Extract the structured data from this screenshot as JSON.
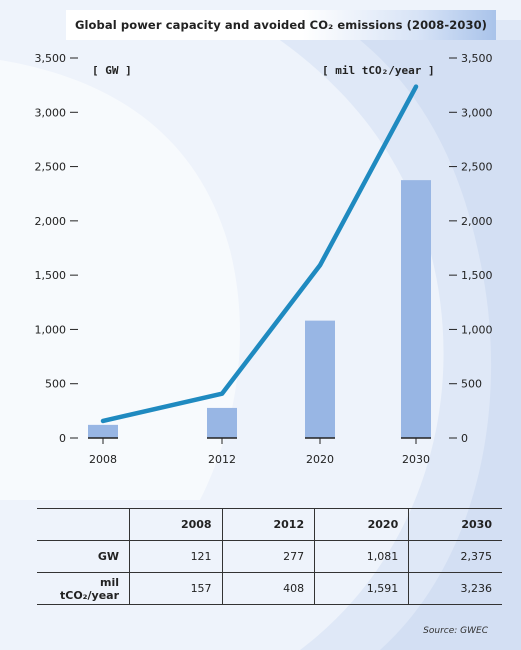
{
  "chart_data": {
    "type": "bar",
    "title": "Global power capacity and avoided CO₂ emissions (2008-2030)",
    "categories": [
      "2008",
      "2012",
      "2020",
      "2030"
    ],
    "series": [
      {
        "name": "GW",
        "type": "bar",
        "values": [
          121,
          277,
          1081,
          2375
        ],
        "color": "#98b6e4"
      },
      {
        "name": "mil tCO₂/year",
        "type": "line",
        "values": [
          157,
          408,
          1591,
          3236
        ],
        "color": "#1f8ac0"
      }
    ],
    "ylabel_left": "[ GW ]",
    "ylabel_right": "[ mil tCO₂/year ]",
    "ylim": [
      0,
      3500
    ],
    "yticks": [
      0,
      500,
      1000,
      1500,
      2000,
      2500,
      3000,
      3500
    ],
    "ytick_labels": [
      "0",
      "500",
      "1,000",
      "1,500",
      "2,000",
      "2,500",
      "3,000",
      "3,500"
    ]
  },
  "table": {
    "columns": [
      "",
      "2008",
      "2012",
      "2020",
      "2030"
    ],
    "rows": [
      {
        "label": "GW",
        "values": [
          "121",
          "277",
          "1,081",
          "2,375"
        ]
      },
      {
        "label": "mil tCO₂/year",
        "values": [
          "157",
          "408",
          "1,591",
          "3,236"
        ]
      }
    ]
  },
  "source": "Source: GWEC"
}
